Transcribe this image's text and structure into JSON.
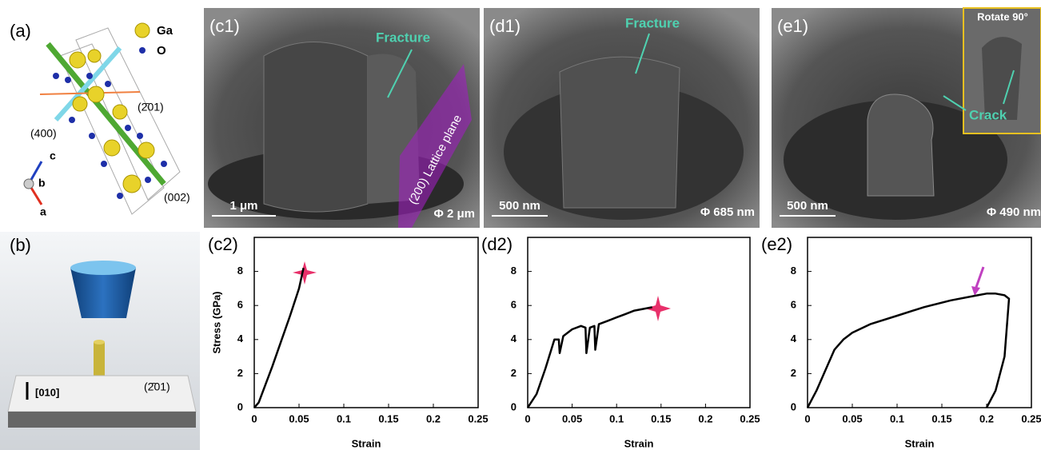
{
  "panels": {
    "a": {
      "label": "(a)",
      "legend": [
        "Ga",
        "O"
      ],
      "planes": [
        "(2̄01)",
        "(400)",
        "(002)"
      ],
      "axes": [
        "c",
        "b",
        "a"
      ]
    },
    "b": {
      "label": "(b)",
      "direction": "[010]",
      "plane": "(2̄01)"
    },
    "c1": {
      "label": "(c1)",
      "annotation": "Fracture",
      "plane": "(200) Lattice plane",
      "scale": "1 μm",
      "diameter": "Φ 2 μm"
    },
    "d1": {
      "label": "(d1)",
      "annotation": "Fracture",
      "scale": "500 nm",
      "diameter": "Φ 685 nm"
    },
    "e1": {
      "label": "(e1)",
      "inset": "Rotate 90°",
      "annotation": "Crack",
      "scale": "500 nm",
      "diameter": "Φ 490 nm"
    }
  },
  "chart_data": [
    {
      "type": "line",
      "title": "(c2)",
      "x_label": "Strain",
      "y_label": "Stress (GPa)",
      "x": [
        0,
        0.005,
        0.01,
        0.02,
        0.03,
        0.04,
        0.05,
        0.055
      ],
      "values": [
        0,
        0.3,
        1.0,
        2.4,
        3.9,
        5.4,
        7.0,
        8.2
      ],
      "color": "#000000",
      "xlim": [
        0,
        0.25
      ],
      "ylim": [
        0,
        10
      ],
      "xticks": [
        0,
        0.05,
        0.1,
        0.15,
        0.2,
        0.25
      ],
      "yticks": [
        0,
        2,
        4,
        6,
        8
      ]
    },
    {
      "type": "line",
      "title": "(d2)",
      "x_label": "Strain",
      "x": [
        0,
        0.01,
        0.02,
        0.03,
        0.035,
        0.036,
        0.04,
        0.05,
        0.06,
        0.065,
        0.066,
        0.07,
        0.075,
        0.076,
        0.08,
        0.09,
        0.1,
        0.11,
        0.12,
        0.13,
        0.14
      ],
      "values": [
        0,
        0.8,
        2.3,
        4.0,
        4.0,
        3.2,
        4.2,
        4.6,
        4.8,
        4.7,
        3.2,
        4.7,
        4.8,
        3.4,
        4.9,
        5.1,
        5.3,
        5.5,
        5.7,
        5.8,
        5.9
      ],
      "color": "#000000",
      "xlim": [
        0,
        0.25
      ],
      "ylim": [
        0,
        10
      ],
      "xticks": [
        0,
        0.05,
        0.1,
        0.15,
        0.2,
        0.25
      ],
      "yticks": [
        0,
        2,
        4,
        6,
        8
      ]
    },
    {
      "type": "line",
      "title": "(e2)",
      "x_label": "Strain",
      "x": [
        0,
        0.01,
        0.02,
        0.03,
        0.04,
        0.05,
        0.07,
        0.1,
        0.13,
        0.16,
        0.19,
        0.2,
        0.21,
        0.22,
        0.225,
        0.22,
        0.21,
        0.2
      ],
      "values": [
        0,
        1.0,
        2.2,
        3.4,
        4.0,
        4.4,
        4.9,
        5.4,
        5.9,
        6.3,
        6.6,
        6.7,
        6.7,
        6.6,
        6.4,
        3.0,
        1.0,
        0
      ],
      "color": "#000000",
      "xlim": [
        0,
        0.25
      ],
      "ylim": [
        0,
        10
      ],
      "xticks": [
        0,
        0.05,
        0.1,
        0.15,
        0.2,
        0.25
      ],
      "yticks": [
        0,
        2,
        4,
        6,
        8
      ]
    }
  ]
}
